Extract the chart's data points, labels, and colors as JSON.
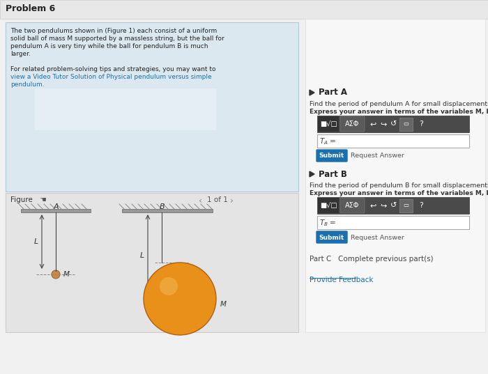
{
  "title": "Problem 6",
  "bg_color": "#f0f0f0",
  "panel_bg": "#ffffff",
  "left_panel_bg": "#dce8f0",
  "problem_text_lines": [
    "The two pendulums shown in (Figure 1) each consist of a uniform",
    "solid ball of mass M supported by a massless string, but the ball for",
    "pendulum A is very tiny while the ball for pendulum B is much",
    "larger.",
    "",
    "For related problem-solving tips and strategies, you may want to",
    "view a Video Tutor Solution of Physical pendulum versus simple",
    "pendulum."
  ],
  "link_line1": "Physical pendulum versus simple",
  "link_line2": "pendulum.",
  "part_a_title": "Part A",
  "part_a_find": "Find the period of pendulum A for small displacements.",
  "part_a_express": "Express your answer in terms of the variables M, L, and appropriate constants.",
  "part_b_title": "Part B",
  "part_b_find": "Find the period of pendulum B for small displacements.",
  "part_b_express": "Express your answer in terms of the variables M, L, and appropriate constants.",
  "part_c_text": "Part C   Complete previous part(s)",
  "provide_feedback": "Provide Feedback",
  "submit_color": "#1a6faf",
  "figure_label": "Figure",
  "nav_text": "1 of 1",
  "ball_color": "#e8901a",
  "ball_highlight": "#f5c060",
  "toolbar_bg": "#4a4a4a",
  "toolbar_btn": "#5a5a5a"
}
